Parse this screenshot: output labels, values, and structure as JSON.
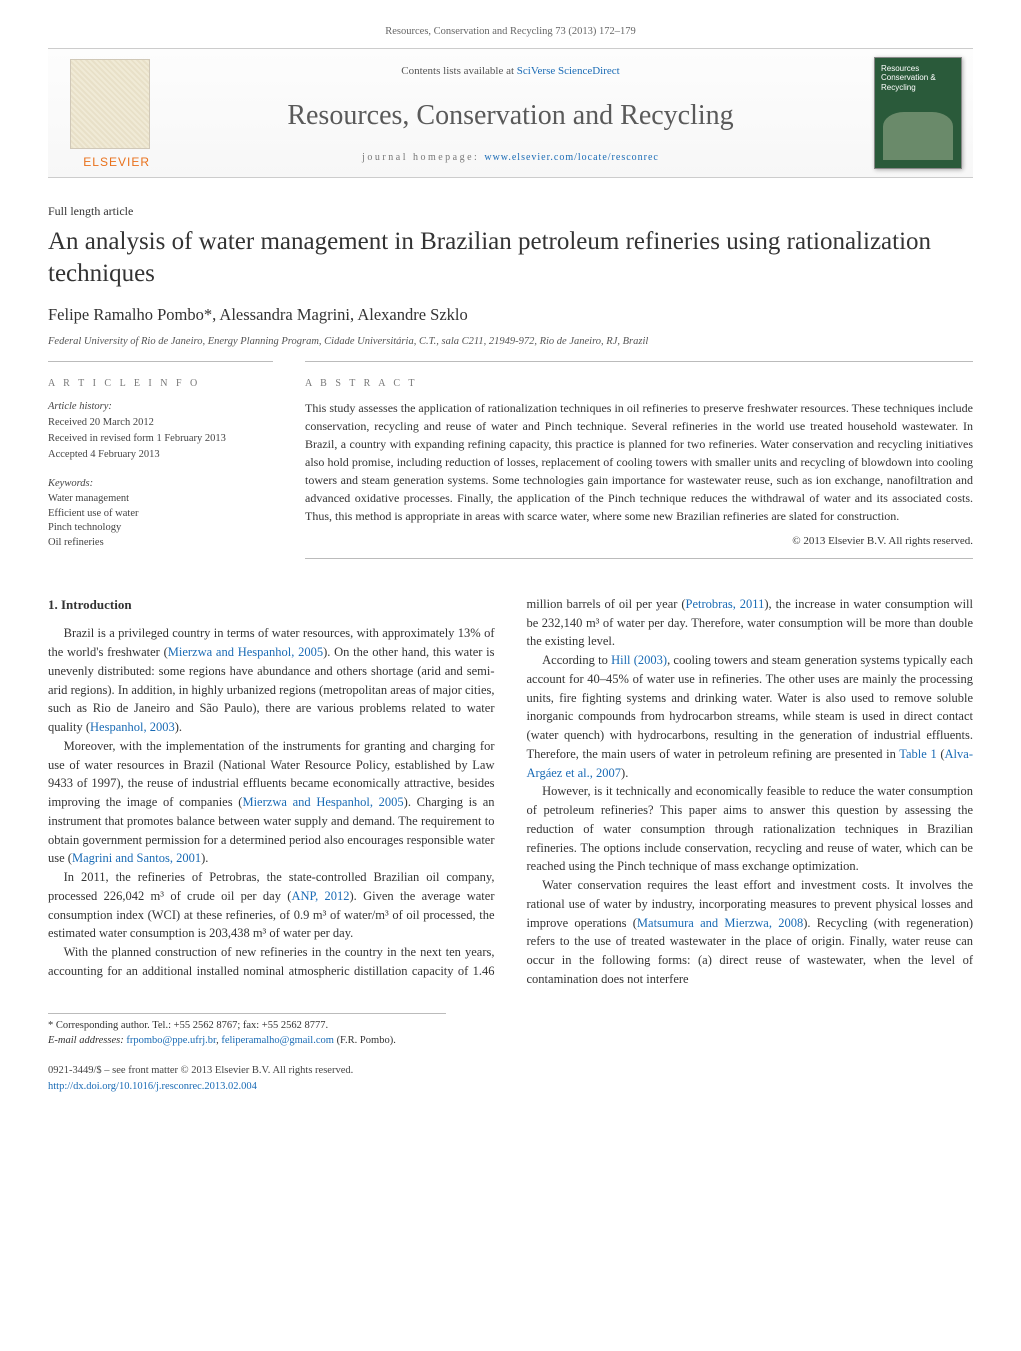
{
  "run_head": "Resources, Conservation and Recycling 73 (2013) 172–179",
  "banner": {
    "contents_prefix": "Contents lists available at ",
    "contents_link": "SciVerse ScienceDirect",
    "journal": "Resources, Conservation and Recycling",
    "homepage_prefix": "journal homepage: ",
    "homepage_link": "www.elsevier.com/locate/resconrec",
    "publisher": "ELSEVIER",
    "cover_text": "Resources Conservation & Recycling"
  },
  "article_type": "Full length article",
  "title": "An analysis of water management in Brazilian petroleum refineries using rationalization techniques",
  "authors": "Felipe Ramalho Pombo*, Alessandra Magrini, Alexandre Szklo",
  "affiliation": "Federal University of Rio de Janeiro, Energy Planning Program, Cidade Universitária, C.T., sala C211, 21949-972, Rio de Janeiro, RJ, Brazil",
  "info": {
    "heading": "A R T I C L E   I N F O",
    "history_heading": "Article history:",
    "received": "Received 20 March 2012",
    "revised": "Received in revised form 1 February 2013",
    "accepted": "Accepted 4 February 2013",
    "keywords_heading": "Keywords:",
    "kw1": "Water management",
    "kw2": "Efficient use of water",
    "kw3": "Pinch technology",
    "kw4": "Oil refineries"
  },
  "abstract": {
    "heading": "A B S T R A C T",
    "body": "This study assesses the application of rationalization techniques in oil refineries to preserve freshwater resources. These techniques include conservation, recycling and reuse of water and Pinch technique. Several refineries in the world use treated household wastewater. In Brazil, a country with expanding refining capacity, this practice is planned for two refineries. Water conservation and recycling initiatives also hold promise, including reduction of losses, replacement of cooling towers with smaller units and recycling of blowdown into cooling towers and steam generation systems. Some technologies gain importance for wastewater reuse, such as ion exchange, nanofiltration and advanced oxidative processes. Finally, the application of the Pinch technique reduces the withdrawal of water and its associated costs. Thus, this method is appropriate in areas with scarce water, where some new Brazilian refineries are slated for construction.",
    "copyright": "© 2013 Elsevier B.V. All rights reserved."
  },
  "section_heading": "1.  Introduction",
  "paragraphs": {
    "p1a": "Brazil is a privileged country in terms of water resources, with approximately 13% of the world's freshwater (",
    "p1link1": "Mierzwa and Hespanhol, 2005",
    "p1b": "). On the other hand, this water is unevenly distributed: some regions have abundance and others shortage (arid and semi-arid regions). In addition, in highly urbanized regions (metropolitan areas of major cities, such as Rio de Janeiro and São Paulo), there are various problems related to water quality (",
    "p1link2": "Hespanhol, 2003",
    "p1c": ").",
    "p2a": "Moreover, with the implementation of the instruments for granting and charging for use of water resources in Brazil (National Water Resource Policy, established by Law 9433 of 1997), the reuse of industrial effluents became economically attractive, besides improving the image of companies (",
    "p2link1": "Mierzwa and Hespanhol, 2005",
    "p2b": "). Charging is an instrument that promotes balance between water supply and demand. The requirement to obtain government permission for a determined period also encourages responsible water use (",
    "p2link2": "Magrini and Santos, 2001",
    "p2c": ").",
    "p3a": "In 2011, the refineries of Petrobras, the state-controlled Brazilian oil company, processed 226,042 m³ of crude oil per day (",
    "p3link1": "ANP, 2012",
    "p3b": "). Given the average water consumption index (WCI) at these refineries, of 0.9 m³ of water/m³ of oil processed, the estimated water consumption is 203,438 m³ of water per day.",
    "p4a": "With the planned construction of new refineries in the country in the next ten years, accounting for an additional installed nominal atmospheric distillation capacity of 1.46 million barrels of oil per year (",
    "p4link1": "Petrobras, 2011",
    "p4b": "), the increase in water consumption will be 232,140 m³ of water per day. Therefore, water consumption will be more than double the existing level.",
    "p5a": "According to ",
    "p5link1": "Hill (2003)",
    "p5b": ", cooling towers and steam generation systems typically each account for 40–45% of water use in refineries. The other uses are mainly the processing units, fire fighting systems and drinking water. Water is also used to remove soluble inorganic compounds from hydrocarbon streams, while steam is used in direct contact (water quench) with hydrocarbons, resulting in the generation of industrial effluents. Therefore, the main users of water in petroleum refining are presented in ",
    "p5link2": "Table 1",
    "p5c": " (",
    "p5link3": "Alva-Argáez et al., 2007",
    "p5d": ").",
    "p6": "However, is it technically and economically feasible to reduce the water consumption of petroleum refineries? This paper aims to answer this question by assessing the reduction of water consumption through rationalization techniques in Brazilian refineries. The options include conservation, recycling and reuse of water, which can be reached using the Pinch technique of mass exchange optimization.",
    "p7a": "Water conservation requires the least effort and investment costs. It involves the rational use of water by industry, incorporating measures to prevent physical losses and improve operations (",
    "p7link1": "Matsumura and Mierzwa, 2008",
    "p7b": "). Recycling (with regeneration) refers to the use of treated wastewater in the place of origin. Finally, water reuse can occur in the following forms: (a) direct reuse of wastewater, when the level of contamination does not interfere"
  },
  "footnotes": {
    "corr": "* Corresponding author. Tel.: +55 2562 8767; fax: +55 2562 8777.",
    "email_label": "E-mail addresses: ",
    "email1": "frpombo@ppe.ufrj.br",
    "email_sep": ", ",
    "email2": "feliperamalho@gmail.com",
    "email_tail": " (F.R. Pombo)."
  },
  "bottom": {
    "issn": "0921-3449/$ – see front matter © 2013 Elsevier B.V. All rights reserved.",
    "doi": "http://dx.doi.org/10.1016/j.resconrec.2013.02.004"
  },
  "colors": {
    "link": "#1a6bb5",
    "accent": "#e9711c",
    "text": "#333333",
    "rule": "#bbbbbb",
    "cover_bg": "#2a5a3a"
  },
  "typography": {
    "body_pt": 12.5,
    "title_pt": 25,
    "journal_pt": 28,
    "authors_pt": 16.5,
    "small_pt": 10.5
  }
}
